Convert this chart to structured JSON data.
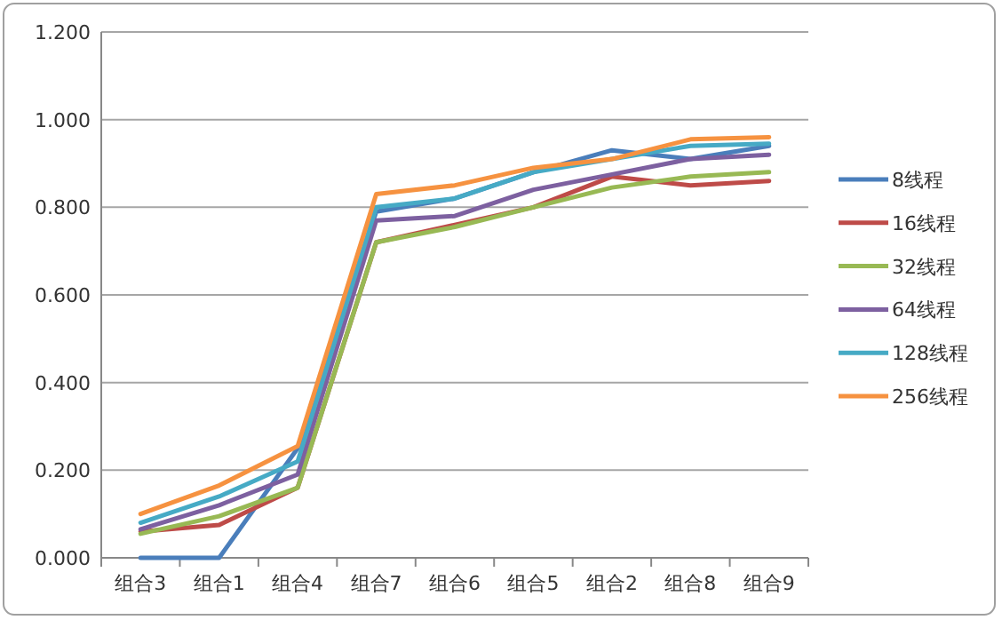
{
  "chart_data": {
    "type": "line",
    "categories": [
      "组合3",
      "组合1",
      "组合4",
      "组合7",
      "组合6",
      "组合5",
      "组合2",
      "组合8",
      "组合9"
    ],
    "ylim": [
      0,
      1.2
    ],
    "yticks": [
      {
        "value": 0,
        "label": "0.000"
      },
      {
        "value": 0.2,
        "label": "0.200"
      },
      {
        "value": 0.4,
        "label": "0.400"
      },
      {
        "value": 0.6,
        "label": "0.600"
      },
      {
        "value": 0.8,
        "label": "0.800"
      },
      {
        "value": 1.0,
        "label": "1.000"
      },
      {
        "value": 1.2,
        "label": "1.200"
      }
    ],
    "grid": "y",
    "legend": "right",
    "marker": "none",
    "line_style": "solid",
    "series": [
      {
        "name": "8线程",
        "color": "#4a7ebb",
        "values": [
          0,
          0,
          0.25,
          0.79,
          0.82,
          0.88,
          0.93,
          0.91,
          0.94
        ]
      },
      {
        "name": "16线程",
        "color": "#be4b48",
        "values": [
          0.06,
          0.075,
          0.16,
          0.72,
          0.76,
          0.8,
          0.87,
          0.85,
          0.86
        ]
      },
      {
        "name": "32线程",
        "color": "#98b954",
        "values": [
          0.055,
          0.095,
          0.16,
          0.72,
          0.755,
          0.8,
          0.845,
          0.87,
          0.88
        ]
      },
      {
        "name": "64线程",
        "color": "#7d60a0",
        "values": [
          0.065,
          0.12,
          0.19,
          0.77,
          0.78,
          0.84,
          0.875,
          0.91,
          0.92
        ]
      },
      {
        "name": "128线程",
        "color": "#46aac5",
        "values": [
          0.08,
          0.14,
          0.22,
          0.8,
          0.82,
          0.88,
          0.91,
          0.94,
          0.945
        ]
      },
      {
        "name": "256线程",
        "color": "#f69240",
        "values": [
          0.1,
          0.165,
          0.255,
          0.83,
          0.85,
          0.89,
          0.91,
          0.955,
          0.96
        ]
      }
    ]
  }
}
